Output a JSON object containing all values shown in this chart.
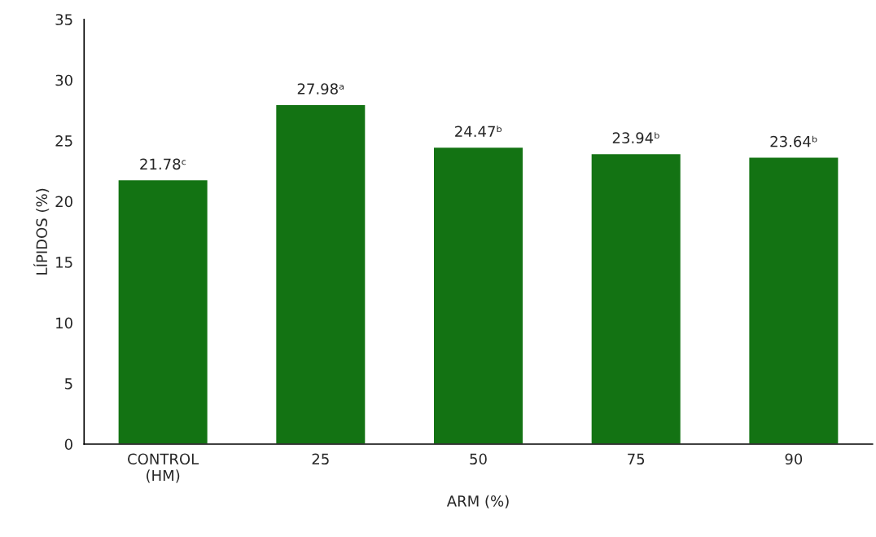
{
  "chart_data": {
    "type": "bar",
    "categories": [
      "CONTROL\n(HM)",
      "25",
      "50",
      "75",
      "90"
    ],
    "values": [
      21.78,
      27.98,
      24.47,
      23.94,
      23.64
    ],
    "value_labels": [
      "21.78ᶜ",
      "27.98ᵃ",
      "24.47ᵇ",
      "23.94ᵇ",
      "23.64ᵇ"
    ],
    "color": "#137313",
    "xlabel": "ARM (%)",
    "ylabel": "LÍPIDOS (%)",
    "ylim": [
      0,
      35
    ],
    "yticks": [
      0,
      5,
      10,
      15,
      20,
      25,
      30,
      35
    ],
    "data_labels": false
  }
}
